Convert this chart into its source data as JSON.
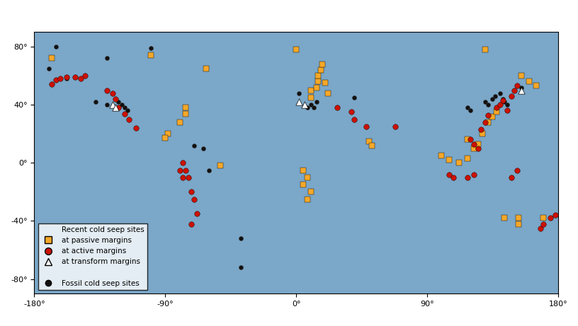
{
  "xlim": [
    -180,
    180
  ],
  "ylim": [
    -90,
    90
  ],
  "xticks": [
    -180,
    -90,
    0,
    90,
    180
  ],
  "yticks": [
    -80,
    -40,
    0,
    40,
    80
  ],
  "passive_margin_color": "#F5A829",
  "active_margin_color": "#CC1100",
  "transform_margin_color": "#FFFFFF",
  "fossil_color": "#111111",
  "passive_sites": [
    [
      -168,
      72
    ],
    [
      0,
      78
    ],
    [
      130,
      78
    ],
    [
      -100,
      74
    ],
    [
      -62,
      65
    ],
    [
      -76,
      38
    ],
    [
      -76,
      34
    ],
    [
      -80,
      28
    ],
    [
      -88,
      20
    ],
    [
      -90,
      17
    ],
    [
      -52,
      -2
    ],
    [
      10,
      45
    ],
    [
      10,
      50
    ],
    [
      14,
      52
    ],
    [
      15,
      56
    ],
    [
      15,
      60
    ],
    [
      17,
      64
    ],
    [
      18,
      68
    ],
    [
      20,
      55
    ],
    [
      22,
      48
    ],
    [
      5,
      -5
    ],
    [
      5,
      -15
    ],
    [
      8,
      -10
    ],
    [
      10,
      -20
    ],
    [
      8,
      -25
    ],
    [
      50,
      15
    ],
    [
      52,
      12
    ],
    [
      100,
      5
    ],
    [
      105,
      2
    ],
    [
      112,
      0
    ],
    [
      118,
      3
    ],
    [
      122,
      10
    ],
    [
      125,
      13
    ],
    [
      118,
      16
    ],
    [
      128,
      20
    ],
    [
      132,
      28
    ],
    [
      135,
      32
    ],
    [
      138,
      35
    ],
    [
      155,
      60
    ],
    [
      160,
      56
    ],
    [
      165,
      53
    ],
    [
      143,
      -38
    ],
    [
      153,
      -38
    ],
    [
      170,
      -38
    ],
    [
      153,
      -42
    ]
  ],
  "active_sites": [
    [
      -168,
      54
    ],
    [
      -165,
      57
    ],
    [
      -162,
      58
    ],
    [
      -158,
      59
    ],
    [
      -152,
      59
    ],
    [
      -148,
      58
    ],
    [
      -145,
      60
    ],
    [
      -130,
      50
    ],
    [
      -126,
      48
    ],
    [
      -124,
      44
    ],
    [
      -122,
      38
    ],
    [
      -118,
      34
    ],
    [
      -115,
      30
    ],
    [
      -110,
      24
    ],
    [
      -78,
      0
    ],
    [
      -76,
      -5
    ],
    [
      -74,
      -10
    ],
    [
      -72,
      -20
    ],
    [
      -70,
      -25
    ],
    [
      -68,
      -35
    ],
    [
      -72,
      -42
    ],
    [
      -78,
      -10
    ],
    [
      -80,
      -5
    ],
    [
      28,
      38
    ],
    [
      38,
      35
    ],
    [
      40,
      30
    ],
    [
      48,
      25
    ],
    [
      68,
      25
    ],
    [
      125,
      10
    ],
    [
      122,
      13
    ],
    [
      120,
      16
    ],
    [
      127,
      23
    ],
    [
      130,
      28
    ],
    [
      132,
      33
    ],
    [
      138,
      38
    ],
    [
      140,
      40
    ],
    [
      142,
      43
    ],
    [
      148,
      46
    ],
    [
      150,
      50
    ],
    [
      152,
      53
    ],
    [
      145,
      36
    ],
    [
      168,
      -45
    ],
    [
      170,
      -42
    ],
    [
      175,
      -38
    ],
    [
      178,
      -36
    ],
    [
      152,
      -5
    ],
    [
      148,
      -10
    ],
    [
      122,
      -8
    ],
    [
      118,
      -10
    ],
    [
      105,
      -8
    ],
    [
      108,
      -10
    ]
  ],
  "transform_sites": [
    [
      -126,
      40
    ],
    [
      -124,
      38
    ],
    [
      2,
      42
    ],
    [
      6,
      40
    ],
    [
      155,
      50
    ]
  ],
  "fossil_sites": [
    [
      -165,
      80
    ],
    [
      -100,
      79
    ],
    [
      -170,
      65
    ],
    [
      -130,
      72
    ],
    [
      -158,
      58
    ],
    [
      -138,
      42
    ],
    [
      -130,
      40
    ],
    [
      -122,
      42
    ],
    [
      -120,
      40
    ],
    [
      -118,
      38
    ],
    [
      -116,
      36
    ],
    [
      -118,
      34
    ],
    [
      -70,
      12
    ],
    [
      -64,
      10
    ],
    [
      -60,
      -5
    ],
    [
      -38,
      -52
    ],
    [
      -38,
      -72
    ],
    [
      2,
      48
    ],
    [
      10,
      40
    ],
    [
      8,
      38
    ],
    [
      12,
      38
    ],
    [
      14,
      42
    ],
    [
      40,
      45
    ],
    [
      118,
      38
    ],
    [
      120,
      36
    ],
    [
      130,
      42
    ],
    [
      132,
      40
    ],
    [
      135,
      44
    ],
    [
      137,
      46
    ],
    [
      140,
      48
    ],
    [
      142,
      44
    ],
    [
      145,
      40
    ],
    [
      143,
      42
    ],
    [
      155,
      52
    ]
  ],
  "figsize": [
    8.16,
    4.61
  ],
  "dpi": 100,
  "border_color": "#888888",
  "tick_label_size": 8
}
